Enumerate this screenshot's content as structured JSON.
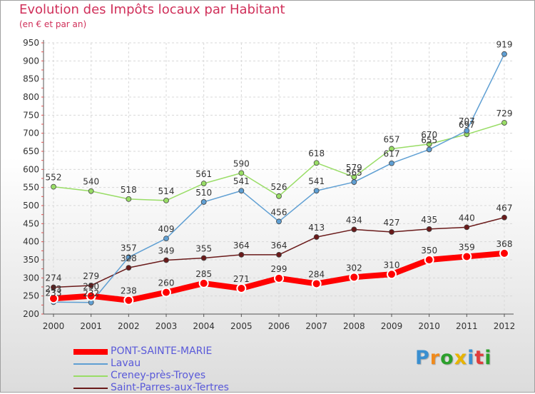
{
  "chart_data": {
    "type": "line",
    "title": "Evolution des Impôts locaux par Habitant",
    "subtitle": "(en € et par an)",
    "x": [
      "2000",
      "2001",
      "2002",
      "2003",
      "2004",
      "2005",
      "2006",
      "2007",
      "2008",
      "2009",
      "2010",
      "2011",
      "2012"
    ],
    "ylim": [
      200,
      950
    ],
    "yticks": [
      200,
      250,
      300,
      350,
      400,
      450,
      500,
      550,
      600,
      650,
      700,
      750,
      800,
      850,
      900,
      950
    ],
    "grid": true,
    "legend_position": "bottom-left",
    "series": [
      {
        "name": "PONT-SAINTE-MARIE",
        "color": "#ff0000",
        "values": [
          243,
          250,
          238,
          260,
          285,
          271,
          299,
          284,
          302,
          310,
          350,
          359,
          368
        ]
      },
      {
        "name": "Lavau",
        "color": "#5f9fd3",
        "values": [
          233,
          232,
          357,
          409,
          510,
          541,
          456,
          541,
          565,
          617,
          655,
          707,
          919
        ]
      },
      {
        "name": "Creney-près-Troyes",
        "color": "#99dd66",
        "values": [
          552,
          540,
          518,
          514,
          561,
          590,
          526,
          618,
          579,
          657,
          670,
          697,
          729
        ]
      },
      {
        "name": "Saint-Parres-aux-Tertres",
        "color": "#6a1a1a",
        "values": [
          274,
          279,
          328,
          349,
          355,
          364,
          364,
          413,
          434,
          427,
          435,
          440,
          467
        ]
      }
    ]
  },
  "logo": {
    "letters": [
      "P",
      "r",
      "o",
      "x",
      "i",
      "t",
      "i"
    ],
    "colors": [
      "#3a8fd0",
      "#f08a1c",
      "#2ca02c",
      "#e8b400",
      "#3a8fd0",
      "#e03c3c",
      "#2ca02c"
    ]
  }
}
